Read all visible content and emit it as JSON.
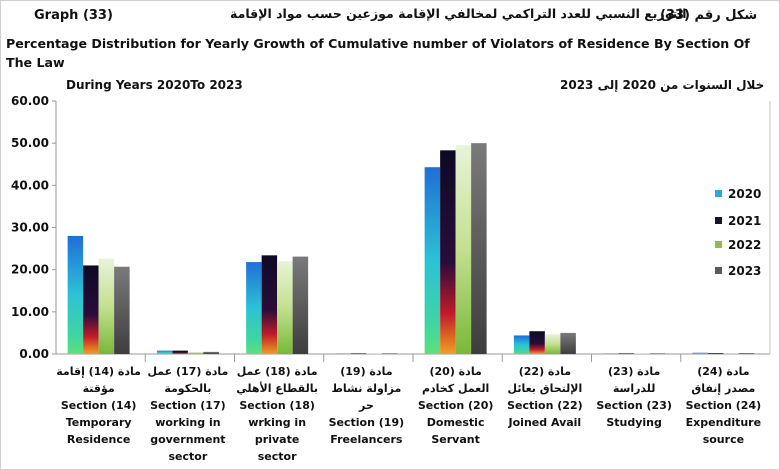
{
  "header": {
    "graph_label": "Graph (33)",
    "title_ar": "التوزيع النسبي للعدد التراكمي لمخالفي الإقامة  موزعين حسب مواد الإقامة",
    "graph_no_ar": "شكل رقم (33)",
    "title_en": "Percentage Distribution for Yearly Growth of Cumulative number of Violators of Residence By Section Of The Law",
    "years_en": "During Years 2020To 2023",
    "years_ar": "خلال السنوات من 2020 إلى 2023"
  },
  "chart_data": {
    "type": "bar",
    "ylim": [
      0,
      60
    ],
    "yticks": [
      "0.00",
      "10.00",
      "20.00",
      "30.00",
      "40.00",
      "50.00",
      "60.00"
    ],
    "grid": false,
    "legend_position": "right",
    "categories": [
      {
        "ar": "مادة (14) إقامة مؤقتة",
        "en": "Section (14) Temporary Residence"
      },
      {
        "ar": "مادة (17) عمل بالحكومة",
        "en": "Section (17) working in government sector"
      },
      {
        "ar": "مادة (18) عمل بالقطاع الأهلي",
        "en": "Section (18) wrking in private sector"
      },
      {
        "ar": "مادة (19) مزاولة نشاط حر",
        "en": "Section (19) Freelancers"
      },
      {
        "ar": "مادة (20) العمل كخادم",
        "en": "Section (20) Domestic Servant"
      },
      {
        "ar": "مادة (22) الإلتحاق بعائل",
        "en": "Section (22) Joined Avail"
      },
      {
        "ar": "مادة (23) للدراسة",
        "en": "Section (23) Studying"
      },
      {
        "ar": "مادة (24) مصدر إنفاق",
        "en": "Section (24) Expenditure source"
      }
    ],
    "series": [
      {
        "name": "2020",
        "color": "#29a8e0",
        "values": [
          28.0,
          0.8,
          21.8,
          0.05,
          44.3,
          4.4,
          0.05,
          0.3
        ]
      },
      {
        "name": "2021",
        "color": "#1a0f2e",
        "values": [
          21.0,
          0.8,
          23.4,
          0.05,
          48.3,
          5.4,
          0.05,
          0.2
        ]
      },
      {
        "name": "2022",
        "color": "#8ac04a",
        "values": [
          22.6,
          0.5,
          22.0,
          0.05,
          49.5,
          4.7,
          0.05,
          0.2
        ]
      },
      {
        "name": "2023",
        "color": "#5a5a5a",
        "values": [
          20.7,
          0.5,
          23.1,
          0.05,
          50.0,
          5.0,
          0.05,
          0.2
        ]
      }
    ]
  }
}
